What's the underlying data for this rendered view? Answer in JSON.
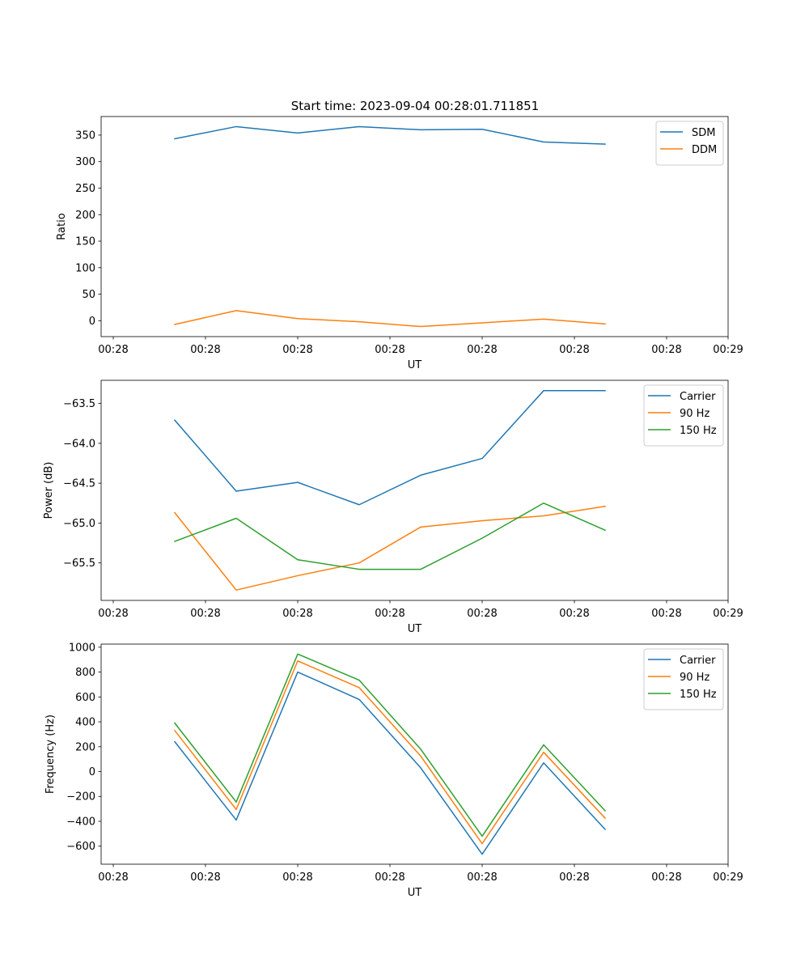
{
  "figure_title": "Start time: 2023-09-04 00:28:01.711851",
  "colors": {
    "blue": "#1f77b4",
    "orange": "#ff7f0e",
    "green": "#2ca02c"
  },
  "chart_data": [
    {
      "type": "line",
      "title": "Start time: 2023-09-04 00:28:01.711851",
      "xlabel": "UT",
      "ylabel": "Ratio",
      "x": [
        1,
        2,
        3,
        4,
        5,
        6,
        7,
        8
      ],
      "xlim": [
        0,
        10
      ],
      "ylim": [
        -30,
        385
      ],
      "xticks": [
        {
          "v": 0,
          "label": "00:28"
        },
        {
          "v": 1.5,
          "label": "00:28"
        },
        {
          "v": 3,
          "label": "00:28"
        },
        {
          "v": 4.5,
          "label": "00:28"
        },
        {
          "v": 6,
          "label": "00:28"
        },
        {
          "v": 7.5,
          "label": "00:28"
        },
        {
          "v": 9,
          "label": "00:28"
        },
        {
          "v": 10,
          "label": "00:29"
        }
      ],
      "yticks": [
        0,
        50,
        100,
        150,
        200,
        250,
        300,
        350
      ],
      "grid": false,
      "legend": "top-right",
      "series": [
        {
          "name": "SDM",
          "color": "#1f77b4",
          "values": [
            343,
            366,
            354,
            366,
            360,
            361,
            337,
            333
          ]
        },
        {
          "name": "DDM",
          "color": "#ff7f0e",
          "values": [
            -7,
            19,
            4,
            -2,
            -11,
            -4,
            3,
            -6
          ]
        }
      ]
    },
    {
      "type": "line",
      "title": "",
      "xlabel": "UT",
      "ylabel": "Power (dB)",
      "x": [
        1,
        2,
        3,
        4,
        5,
        6,
        7,
        8
      ],
      "xlim": [
        0,
        10
      ],
      "ylim": [
        -65.97,
        -63.21
      ],
      "xticks": [
        {
          "v": 0,
          "label": "00:28"
        },
        {
          "v": 1.5,
          "label": "00:28"
        },
        {
          "v": 3,
          "label": "00:28"
        },
        {
          "v": 4.5,
          "label": "00:28"
        },
        {
          "v": 6,
          "label": "00:28"
        },
        {
          "v": 7.5,
          "label": "00:28"
        },
        {
          "v": 9,
          "label": "00:28"
        },
        {
          "v": 10,
          "label": "00:29"
        }
      ],
      "yticks": [
        -63.5,
        -64.0,
        -64.5,
        -65.0,
        -65.5
      ],
      "grid": false,
      "legend": "top-right",
      "series": [
        {
          "name": "Carrier",
          "color": "#1f77b4",
          "values": [
            -63.71,
            -64.6,
            -64.49,
            -64.77,
            -64.4,
            -64.19,
            -63.34,
            -63.34
          ]
        },
        {
          "name": "90 Hz",
          "color": "#ff7f0e",
          "values": [
            -64.87,
            -65.84,
            -65.66,
            -65.5,
            -65.05,
            -64.97,
            -64.91,
            -64.79
          ]
        },
        {
          "name": "150 Hz",
          "color": "#2ca02c",
          "values": [
            -65.23,
            -64.94,
            -65.46,
            -65.58,
            -65.58,
            -65.19,
            -64.75,
            -65.09
          ]
        }
      ]
    },
    {
      "type": "line",
      "title": "",
      "xlabel": "UT",
      "ylabel": "Frequency (Hz)",
      "x": [
        1,
        2,
        3,
        4,
        5,
        6,
        7,
        8
      ],
      "xlim": [
        0,
        10
      ],
      "ylim": [
        -745,
        1025
      ],
      "xticks": [
        {
          "v": 0,
          "label": "00:28"
        },
        {
          "v": 1.5,
          "label": "00:28"
        },
        {
          "v": 3,
          "label": "00:28"
        },
        {
          "v": 4.5,
          "label": "00:28"
        },
        {
          "v": 6,
          "label": "00:28"
        },
        {
          "v": 7.5,
          "label": "00:28"
        },
        {
          "v": 9,
          "label": "00:28"
        },
        {
          "v": 10,
          "label": "00:29"
        }
      ],
      "yticks": [
        1000,
        800,
        600,
        400,
        200,
        0,
        -200,
        -400,
        -600
      ],
      "grid": false,
      "legend": "top-right",
      "series": [
        {
          "name": "Carrier",
          "color": "#1f77b4",
          "values": [
            240,
            -390,
            800,
            580,
            30,
            -665,
            70,
            -465
          ]
        },
        {
          "name": "90 Hz",
          "color": "#ff7f0e",
          "values": [
            330,
            -305,
            890,
            675,
            125,
            -580,
            155,
            -375
          ]
        },
        {
          "name": "150 Hz",
          "color": "#2ca02c",
          "values": [
            390,
            -245,
            945,
            735,
            180,
            -520,
            215,
            -315
          ]
        }
      ]
    }
  ]
}
